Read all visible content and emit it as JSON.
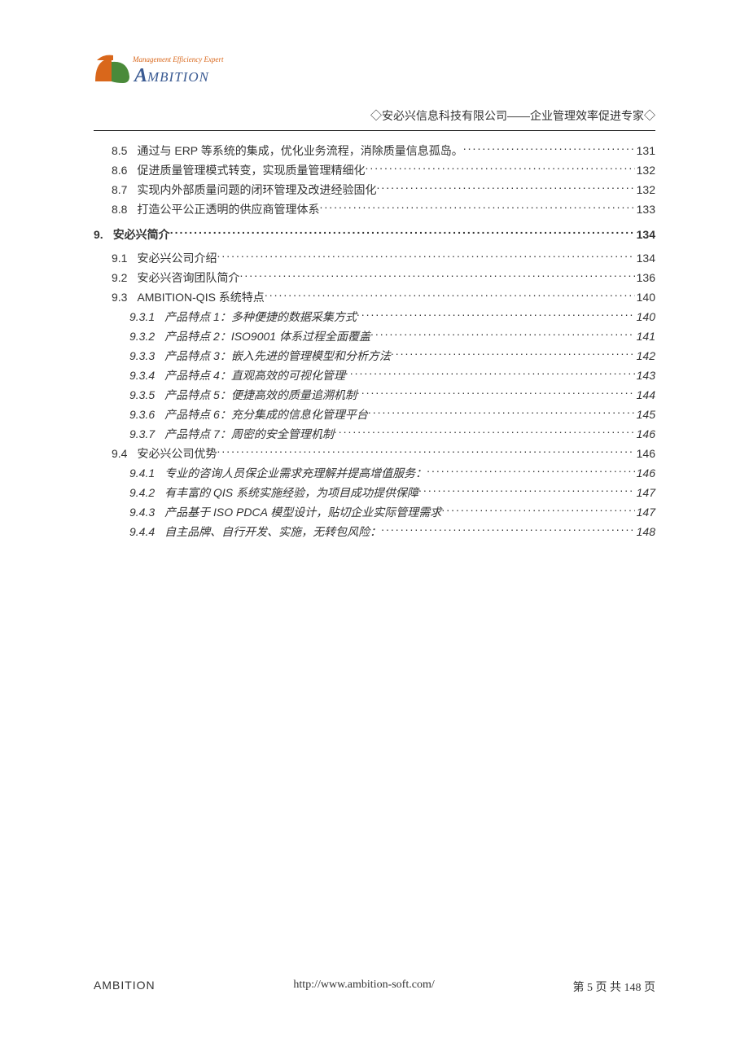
{
  "header": {
    "logo_tagline": "Management Efficiency Expert",
    "logo_tagline_color": "#d9671b",
    "logo_text": "AMBITION",
    "logo_text_color": "#3a5a92",
    "right_text": "◇安必兴信息科技有限公司——企业管理效率促进专家◇"
  },
  "logo_shape": {
    "left_color": "#d9671b",
    "right_color": "#4a8a3a"
  },
  "toc": [
    {
      "level": 2,
      "num": "8.5",
      "title": "通过与 ERP 等系统的集成，优化业务流程，消除质量信息孤岛。",
      "page": "131"
    },
    {
      "level": 2,
      "num": "8.6",
      "title": "促进质量管理模式转变，实现质量管理精细化",
      "page": "132"
    },
    {
      "level": 2,
      "num": "8.7",
      "title": "实现内外部质量问题的闭环管理及改进经验固化",
      "page": "132"
    },
    {
      "level": 2,
      "num": "8.8",
      "title": "打造公平公正透明的供应商管理体系",
      "page": "133"
    },
    {
      "level": 1,
      "num": "9.",
      "title": "安必兴简介",
      "page": "134"
    },
    {
      "level": 2,
      "num": "9.1",
      "title": "安必兴公司介绍",
      "page": "134"
    },
    {
      "level": 2,
      "num": "9.2",
      "title": "安必兴咨询团队简介",
      "page": "136"
    },
    {
      "level": 2,
      "num": "9.3",
      "title": "AMBITION-QIS 系统特点",
      "page": "140"
    },
    {
      "level": 3,
      "num": "9.3.1",
      "title": "产品特点 1：多种便捷的数据采集方式",
      "page": "140"
    },
    {
      "level": 3,
      "num": "9.3.2",
      "title": "产品特点 2：ISO9001 体系过程全面覆盖",
      "page": "141"
    },
    {
      "level": 3,
      "num": "9.3.3",
      "title": "产品特点 3：嵌入先进的管理模型和分析方法",
      "page": "142"
    },
    {
      "level": 3,
      "num": "9.3.4",
      "title": "产品特点 4：直观高效的可视化管理",
      "page": "143"
    },
    {
      "level": 3,
      "num": "9.3.5",
      "title": "产品特点 5：便捷高效的质量追溯机制",
      "page": "144"
    },
    {
      "level": 3,
      "num": "9.3.6",
      "title": "产品特点 6：充分集成的信息化管理平台",
      "page": "145"
    },
    {
      "level": 3,
      "num": "9.3.7",
      "title": "产品特点 7：周密的安全管理机制",
      "page": "146"
    },
    {
      "level": 2,
      "num": "9.4",
      "title": "安必兴公司优势",
      "page": "146"
    },
    {
      "level": 3,
      "num": "9.4.1",
      "title": "专业的咨询人员保企业需求充理解并提高增值服务：",
      "page": "146"
    },
    {
      "level": 3,
      "num": "9.4.2",
      "title": "有丰富的 QIS 系统实施经验，为项目成功提供保障",
      "page": "147"
    },
    {
      "level": 3,
      "num": "9.4.3",
      "title": "产品基于 ISO   PDCA 模型设计，贴切企业实际管理需求",
      "page": "147"
    },
    {
      "level": 3,
      "num": "9.4.4",
      "title": "自主品牌、自行开发、实施，无转包风险：",
      "page": "148"
    }
  ],
  "footer": {
    "left": "AMBITION",
    "center": "http://www.ambition-soft.com/",
    "right": "第 5 页 共 148 页"
  }
}
